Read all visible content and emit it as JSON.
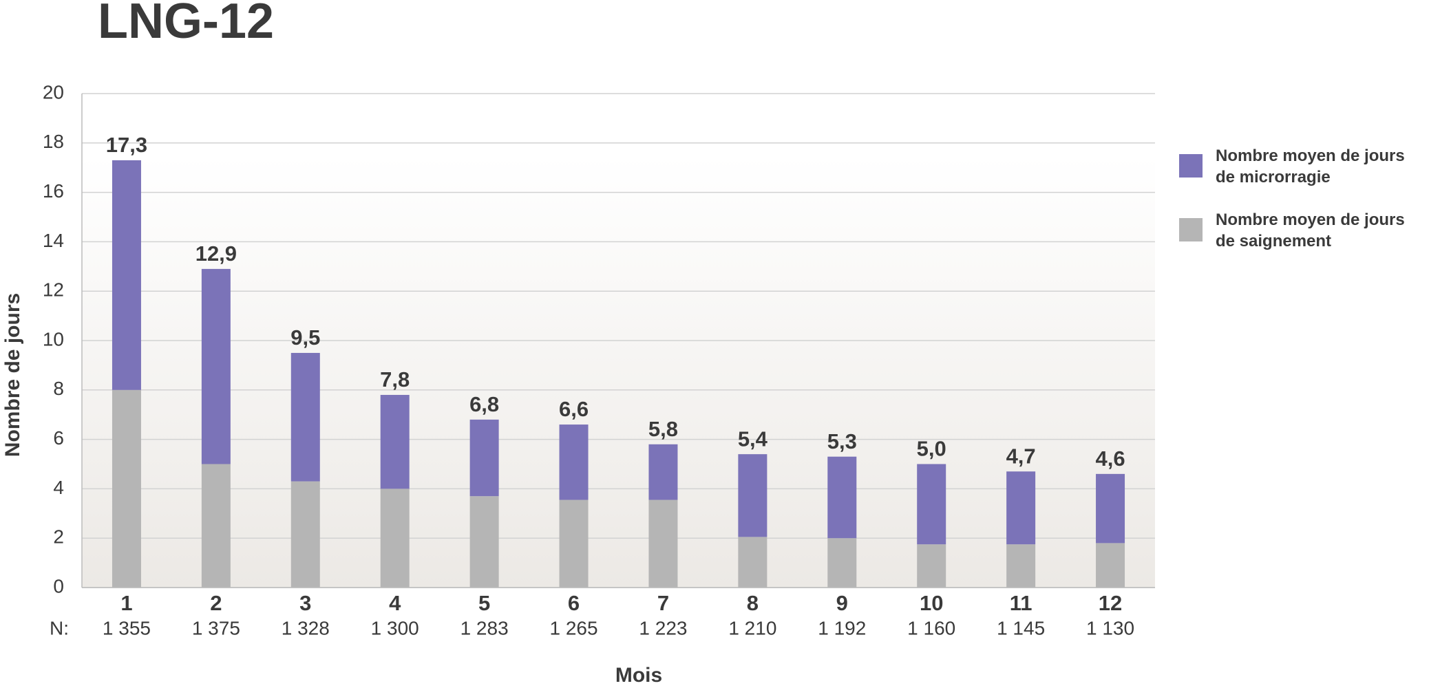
{
  "chart_data": {
    "type": "stacked_bar",
    "title": "LNG-12",
    "x_label": "Mois",
    "y_label": "Nombre de jours",
    "categories": [
      "1",
      "2",
      "3",
      "4",
      "5",
      "6",
      "7",
      "8",
      "9",
      "10",
      "11",
      "12"
    ],
    "n_prefix": "N:",
    "n_labels": [
      "1 355",
      "1 375",
      "1 328",
      "1 300",
      "1 283",
      "1 265",
      "1 223",
      "1 210",
      "1 192",
      "1 160",
      "1 145",
      "1 130"
    ],
    "series": [
      {
        "name": "Nombre moyen de jours de saignement",
        "color": "#b5b5b5",
        "values": [
          8.0,
          5.0,
          4.3,
          4.0,
          3.7,
          3.55,
          3.55,
          2.05,
          2.0,
          1.75,
          1.75,
          1.8
        ]
      },
      {
        "name": "Nombre moyen de jours de microrragie",
        "color": "#7b73b8",
        "values": [
          9.3,
          7.9,
          5.2,
          3.8,
          3.1,
          3.05,
          2.25,
          3.35,
          3.3,
          3.25,
          2.95,
          2.8
        ]
      }
    ],
    "totals": [
      17.3,
      12.9,
      9.5,
      7.8,
      6.8,
      6.6,
      5.8,
      5.4,
      5.3,
      5.0,
      4.7,
      4.6
    ],
    "total_labels": [
      "17,3",
      "12,9",
      "9,5",
      "7,8",
      "6,8",
      "6,6",
      "5,8",
      "5,4",
      "5,3",
      "5,0",
      "4,7",
      "4,6"
    ],
    "ylim": [
      0,
      20
    ],
    "yticks": [
      0,
      2,
      4,
      6,
      8,
      10,
      12,
      14,
      16,
      18,
      20
    ],
    "grid": true
  }
}
